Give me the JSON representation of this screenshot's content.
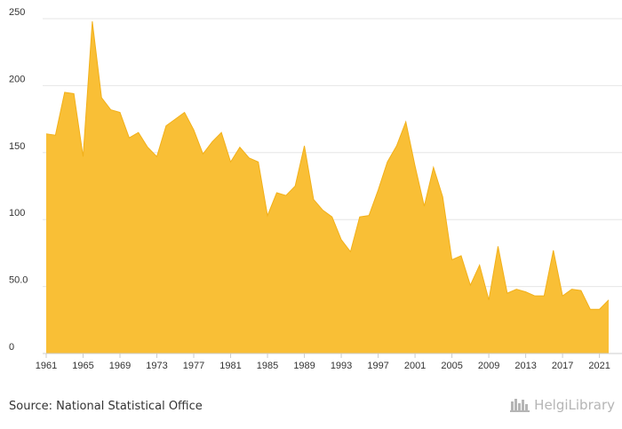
{
  "chart_data": {
    "type": "area",
    "x": [
      1961,
      1962,
      1963,
      1964,
      1965,
      1966,
      1967,
      1968,
      1969,
      1970,
      1971,
      1972,
      1973,
      1974,
      1975,
      1976,
      1977,
      1978,
      1979,
      1980,
      1981,
      1982,
      1983,
      1984,
      1985,
      1986,
      1987,
      1988,
      1989,
      1990,
      1991,
      1992,
      1993,
      1994,
      1995,
      1996,
      1997,
      1998,
      1999,
      2000,
      2001,
      2002,
      2003,
      2004,
      2005,
      2006,
      2007,
      2008,
      2009,
      2010,
      2011,
      2012,
      2013,
      2014,
      2015,
      2016,
      2017,
      2018,
      2019,
      2020,
      2021,
      2022
    ],
    "values": [
      164,
      163,
      195,
      194,
      147,
      248,
      191,
      182,
      180,
      161,
      165,
      154,
      147,
      170,
      175,
      180,
      167,
      149,
      158,
      165,
      143,
      154,
      146,
      143,
      103,
      120,
      118,
      125,
      155,
      115,
      107,
      102,
      85,
      76,
      102,
      103,
      122,
      143,
      155,
      173,
      140,
      110,
      139,
      117,
      70,
      73,
      51,
      66,
      40,
      80,
      45,
      48,
      46,
      43,
      43,
      77,
      43,
      48,
      47,
      33,
      33,
      40
    ],
    "xticks": [
      "1961",
      "1965",
      "1969",
      "1973",
      "1977",
      "1981",
      "1985",
      "1989",
      "1993",
      "1997",
      "2001",
      "2005",
      "2009",
      "2013",
      "2017",
      "2021"
    ],
    "yticks": [
      "0",
      "50.0",
      "100",
      "150",
      "200",
      "250"
    ],
    "ylim": [
      0,
      250
    ],
    "xlim": [
      1961,
      2022
    ],
    "grid": true,
    "legend": "none",
    "fill_color": "#f9bf36",
    "line_color": "#f2b019",
    "title": "",
    "xlabel": "",
    "ylabel": ""
  },
  "footer": {
    "source": "Source: National Statistical Office",
    "brand": "HelgiLibrary",
    "brand_icon": "library-icon",
    "brand_color": "#b5b5b5"
  }
}
